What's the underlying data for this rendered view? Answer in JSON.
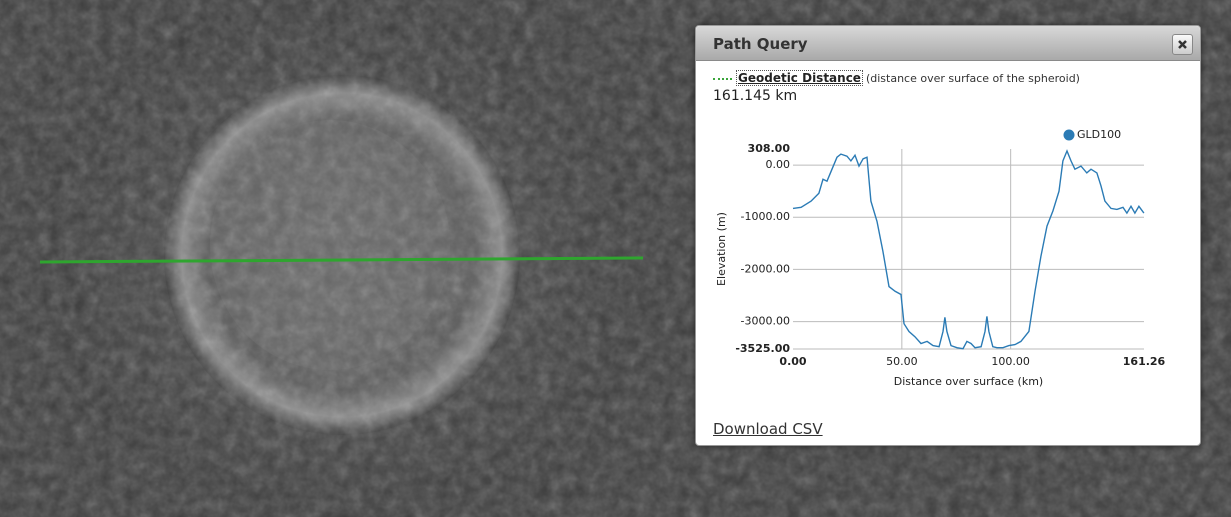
{
  "panel": {
    "title": "Path Query",
    "measure": {
      "label": "Geodetic Distance",
      "note": "(distance over surface of the spheroid)",
      "value": "161.145 km"
    },
    "download": "Download CSV"
  },
  "chart_data": {
    "type": "line",
    "xlabel": "Distance over surface (km)",
    "ylabel": "Elevation (m)",
    "x": [
      0,
      3.7,
      8.3,
      11.9,
      13.8,
      15.6,
      17.5,
      20.2,
      22.0,
      24.8,
      26.6,
      28.5,
      30.3,
      32.2,
      34.0,
      35.8,
      38.6,
      41.3,
      44.1,
      46.9,
      49.6,
      51.0,
      53.3,
      56.0,
      58.8,
      61.6,
      64.3,
      67.1,
      68.9,
      69.8,
      70.7,
      72.6,
      75.3,
      78.1,
      79.9,
      81.8,
      83.6,
      86.4,
      88.2,
      89.1,
      90.0,
      91.8,
      93.7,
      96.5,
      99.2,
      102.0,
      104.7,
      108.4,
      111.2,
      113.9,
      116.7,
      119.4,
      122.2,
      124.0,
      125.9,
      127.7,
      129.5,
      132.3,
      135.0,
      136.9,
      139.6,
      141.5,
      143.3,
      146.1,
      148.8,
      151.6,
      153.4,
      155.3,
      157.1,
      158.9,
      161.2
    ],
    "series": [
      {
        "name": "GLD100",
        "color": "#2b7bb5",
        "values": [
          -830,
          -810,
          -690,
          -540,
          -270,
          -310,
          -120,
          150,
          210,
          170,
          80,
          190,
          -20,
          120,
          150,
          -690,
          -1080,
          -1650,
          -2330,
          -2420,
          -2480,
          -3040,
          -3190,
          -3290,
          -3420,
          -3380,
          -3460,
          -3480,
          -3190,
          -2920,
          -3190,
          -3460,
          -3500,
          -3520,
          -3380,
          -3420,
          -3500,
          -3480,
          -3190,
          -2900,
          -3190,
          -3480,
          -3500,
          -3500,
          -3460,
          -3440,
          -3380,
          -3190,
          -2420,
          -1750,
          -1170,
          -880,
          -500,
          80,
          270,
          80,
          -80,
          -20,
          -150,
          -80,
          -150,
          -400,
          -690,
          -830,
          -850,
          -810,
          -920,
          -790,
          -920,
          -790,
          -920
        ]
      }
    ],
    "xlim": [
      0,
      161.26
    ],
    "ylim": [
      -3525,
      308
    ],
    "xticks": [
      {
        "value": 0,
        "label": "0.00"
      },
      {
        "value": 50,
        "label": "50.00"
      },
      {
        "value": 100,
        "label": "100.00"
      },
      {
        "value": 161.26,
        "label": "161.26"
      }
    ],
    "yticks": [
      {
        "value": 308,
        "label": "308.00"
      },
      {
        "value": 0,
        "label": "0.00"
      },
      {
        "value": -1000,
        "label": "-1000.00"
      },
      {
        "value": -2000,
        "label": "-2000.00"
      },
      {
        "value": -3000,
        "label": "-3000.00"
      },
      {
        "value": -3525,
        "label": "-3525.00"
      }
    ],
    "grid": true,
    "legend": "top-right"
  }
}
